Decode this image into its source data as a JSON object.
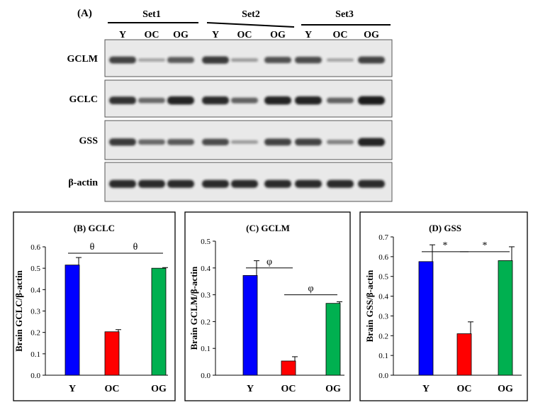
{
  "figure": {
    "blot": {
      "panel_label": "(A)",
      "sets": [
        "Set1",
        "Set2",
        "Set3"
      ],
      "lanes": [
        "Y",
        "OC",
        "OG",
        "Y",
        "OC",
        "OG",
        "Y",
        "OC",
        "OG"
      ],
      "rows": [
        {
          "name": "GCLM",
          "lane_intensity": [
            0.75,
            0.15,
            0.6,
            0.8,
            0.2,
            0.65,
            0.7,
            0.15,
            0.75
          ]
        },
        {
          "name": "GCLC",
          "lane_intensity": [
            0.85,
            0.5,
            0.95,
            0.9,
            0.55,
            0.95,
            0.95,
            0.55,
            1.0
          ]
        },
        {
          "name": "GSS",
          "lane_intensity": [
            0.8,
            0.5,
            0.6,
            0.7,
            0.2,
            0.75,
            0.75,
            0.35,
            0.95
          ]
        },
        {
          "name": "β-actin",
          "lane_intensity": [
            0.9,
            0.9,
            0.9,
            0.9,
            0.9,
            0.9,
            0.9,
            0.9,
            0.9
          ]
        }
      ]
    }
  },
  "chart_data": [
    {
      "type": "bar",
      "title": "(B) GCLC",
      "ylabel": "Brain GCLC/β-actin",
      "categories": [
        "Y",
        "OC",
        "OG"
      ],
      "values": [
        0.515,
        0.203,
        0.5
      ],
      "errors": [
        0.035,
        0.01,
        0.003
      ],
      "colors": [
        "#0000ff",
        "#ff0000",
        "#00b050"
      ],
      "ylim": [
        0,
        0.6
      ],
      "yticks": [
        "0.0",
        "0.1",
        "0.2",
        "0.3",
        "0.4",
        "0.5",
        "0.6"
      ],
      "grid": false,
      "annotations": [
        {
          "from": 0,
          "to": 1,
          "y": 0.57,
          "symbol": "θ"
        },
        {
          "from": 1,
          "to": 2,
          "y": 0.57,
          "symbol": "θ"
        }
      ]
    },
    {
      "type": "bar",
      "title": "(C) GCLM",
      "ylabel": "Brain GCLM/β-actin",
      "categories": [
        "Y",
        "OC",
        "OG"
      ],
      "values": [
        0.372,
        0.053,
        0.268
      ],
      "errors": [
        0.055,
        0.016,
        0.006
      ],
      "colors": [
        "#0000ff",
        "#ff0000",
        "#00b050"
      ],
      "ylim": [
        0,
        0.5
      ],
      "yticks": [
        "0.0",
        "0.1",
        "0.2",
        "0.3",
        "0.4",
        "0.5"
      ],
      "grid": false,
      "annotations": [
        {
          "from": 0,
          "to": 1,
          "y": 0.4,
          "symbol": "φ"
        },
        {
          "from": 1,
          "to": 2,
          "y": 0.3,
          "symbol": "φ"
        }
      ]
    },
    {
      "type": "bar",
      "title": "(D) GSS",
      "ylabel": "Brain GSS/β-actin",
      "categories": [
        "Y",
        "OC",
        "OG"
      ],
      "values": [
        0.575,
        0.21,
        0.58
      ],
      "errors": [
        0.085,
        0.06,
        0.07
      ],
      "colors": [
        "#0000ff",
        "#ff0000",
        "#00b050"
      ],
      "ylim": [
        0,
        0.7
      ],
      "yticks": [
        "0.0",
        "0.1",
        "0.2",
        "0.3",
        "0.4",
        "0.5",
        "0.6",
        "0.7"
      ],
      "grid": false,
      "annotations": [
        {
          "from": 0,
          "to": 1,
          "y": 0.625,
          "symbol": "*"
        },
        {
          "from": 1,
          "to": 2,
          "y": 0.625,
          "symbol": "*"
        }
      ]
    }
  ]
}
